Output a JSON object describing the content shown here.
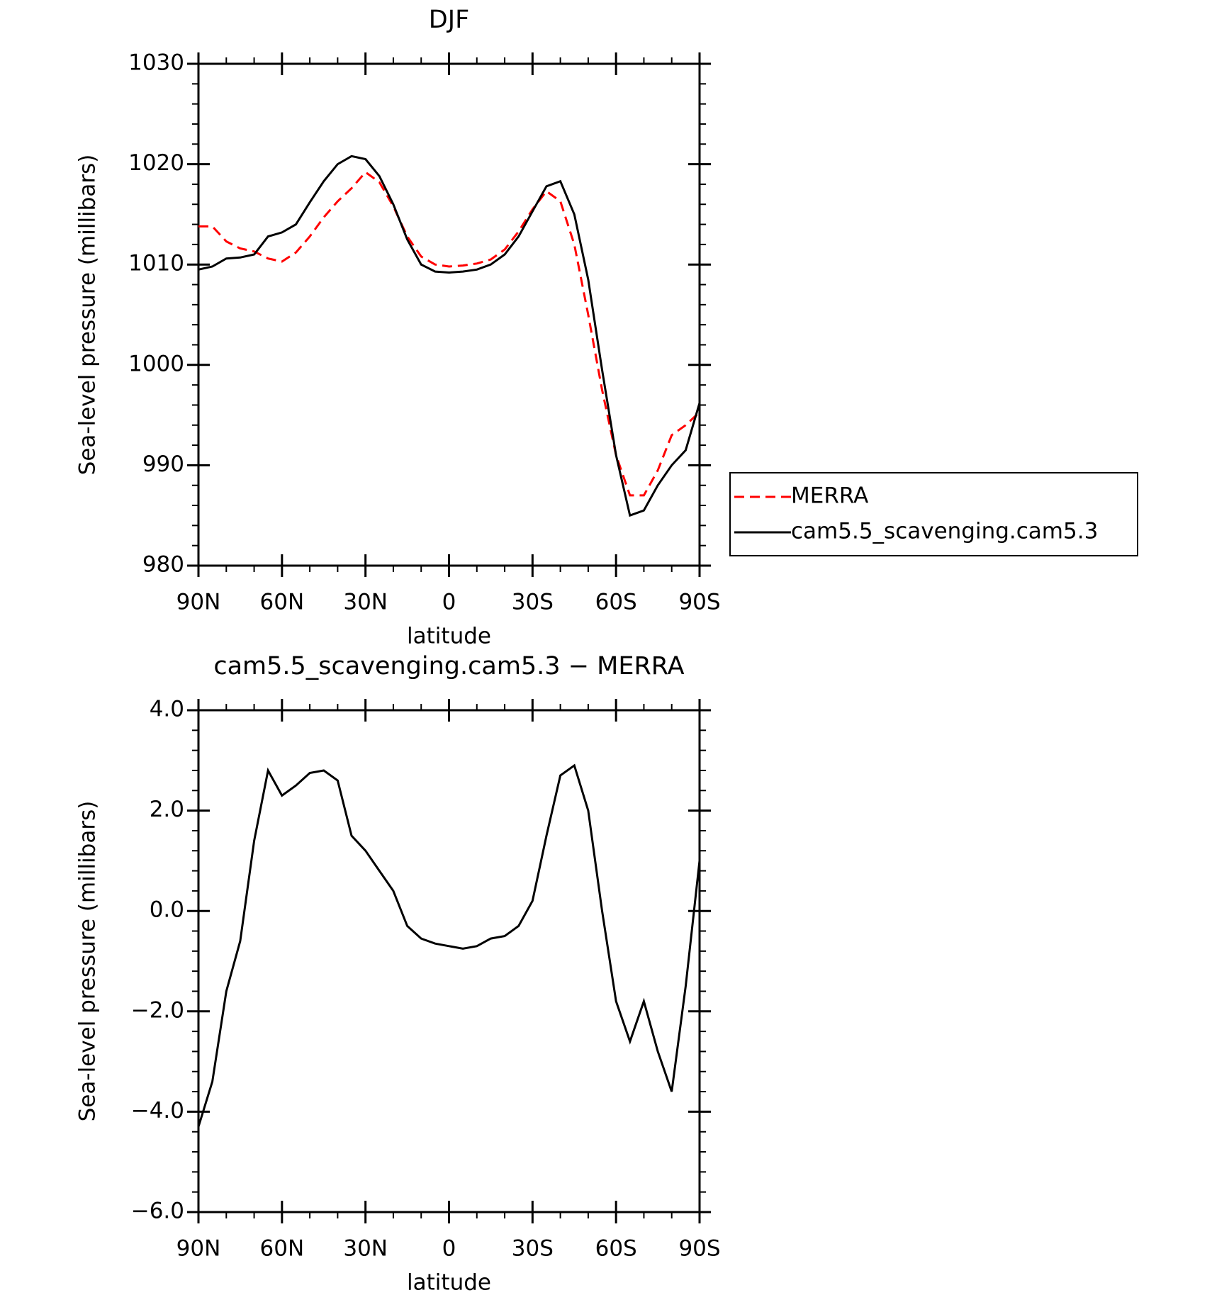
{
  "chart_data": [
    {
      "type": "line",
      "title": "DJF",
      "x_label": "latitude",
      "y_label": "Sea-level pressure (millibars)",
      "x": [
        90,
        85,
        80,
        75,
        70,
        65,
        60,
        55,
        50,
        45,
        40,
        35,
        30,
        25,
        20,
        15,
        10,
        5,
        0,
        -5,
        -10,
        -15,
        -20,
        -25,
        -30,
        -35,
        -40,
        -45,
        -50,
        -55,
        -60,
        -65,
        -70,
        -75,
        -80,
        -85,
        -90
      ],
      "xlim": [
        90,
        -90
      ],
      "xticks": [
        {
          "value": 90,
          "label": "90N"
        },
        {
          "value": 60,
          "label": "60N"
        },
        {
          "value": 30,
          "label": "30N"
        },
        0,
        {
          "value": -30,
          "label": "30S"
        },
        {
          "value": -60,
          "label": "60S"
        },
        {
          "value": -90,
          "label": "90S"
        }
      ],
      "ylim": [
        980,
        1030
      ],
      "yticks": [
        980,
        990,
        1000,
        1010,
        1020,
        1030
      ],
      "legend": "right",
      "series": [
        {
          "name": "MERRA",
          "color": "#ff0000",
          "linestyle": "dashed",
          "values": [
            1013.8,
            1013.8,
            1012.3,
            1011.6,
            1011.3,
            1010.6,
            1010.3,
            1011.2,
            1012.8,
            1014.7,
            1016.3,
            1017.6,
            1019.2,
            1018.2,
            1015.8,
            1012.8,
            1010.8,
            1010.0,
            1009.8,
            1009.9,
            1010.1,
            1010.5,
            1011.5,
            1013.3,
            1015.5,
            1017.3,
            1016.3,
            1012.0,
            1005.0,
            997.5,
            991.0,
            987.0,
            987.0,
            989.5,
            993.0,
            994.0,
            995.3
          ]
        },
        {
          "name": "cam5.5_scavenging.cam5.3",
          "color": "#000000",
          "linestyle": "solid",
          "values": [
            1009.5,
            1009.8,
            1010.6,
            1010.7,
            1011.0,
            1012.8,
            1013.2,
            1014.0,
            1016.2,
            1018.3,
            1020.0,
            1020.8,
            1020.5,
            1018.8,
            1016.0,
            1012.5,
            1010.0,
            1009.3,
            1009.2,
            1009.3,
            1009.5,
            1010.0,
            1011.0,
            1012.8,
            1015.3,
            1017.8,
            1018.3,
            1015.0,
            1008.5,
            999.5,
            991.0,
            985.0,
            985.5,
            988.0,
            990.0,
            991.5,
            996.2
          ]
        }
      ]
    },
    {
      "type": "line",
      "title": "cam5.5_scavenging.cam5.3 − MERRA",
      "x_label": "latitude",
      "y_label": "Sea-level pressure (millibars)",
      "x": [
        90,
        85,
        80,
        75,
        70,
        65,
        60,
        55,
        50,
        45,
        40,
        35,
        30,
        25,
        20,
        15,
        10,
        5,
        0,
        -5,
        -10,
        -15,
        -20,
        -25,
        -30,
        -35,
        -40,
        -45,
        -50,
        -55,
        -60,
        -65,
        -70,
        -75,
        -80,
        -85,
        -90
      ],
      "xlim": [
        90,
        -90
      ],
      "xticks": [
        {
          "value": 90,
          "label": "90N"
        },
        {
          "value": 60,
          "label": "60N"
        },
        {
          "value": 30,
          "label": "30N"
        },
        0,
        {
          "value": -30,
          "label": "30S"
        },
        {
          "value": -60,
          "label": "60S"
        },
        {
          "value": -90,
          "label": "90S"
        }
      ],
      "ylim": [
        -6,
        4
      ],
      "yticks": [
        {
          "value": -6,
          "label": "−6.0"
        },
        {
          "value": -4,
          "label": "−4.0"
        },
        {
          "value": -2,
          "label": "−2.0"
        },
        {
          "value": 0,
          "label": "0.0"
        },
        {
          "value": 2,
          "label": "2.0"
        },
        {
          "value": 4,
          "label": "4.0"
        }
      ],
      "series": [
        {
          "color": "#000000",
          "linestyle": "solid",
          "values": [
            -4.3,
            -3.4,
            -1.6,
            -0.6,
            1.4,
            2.8,
            2.3,
            2.5,
            2.75,
            2.8,
            2.6,
            1.5,
            1.2,
            0.8,
            0.4,
            -0.3,
            -0.55,
            -0.65,
            -0.7,
            -0.75,
            -0.7,
            -0.55,
            -0.5,
            -0.3,
            0.2,
            1.5,
            2.7,
            2.9,
            2.0,
            0.0,
            -1.8,
            -2.6,
            -1.8,
            -2.8,
            -3.6,
            -1.5,
            1.0
          ]
        }
      ]
    }
  ]
}
